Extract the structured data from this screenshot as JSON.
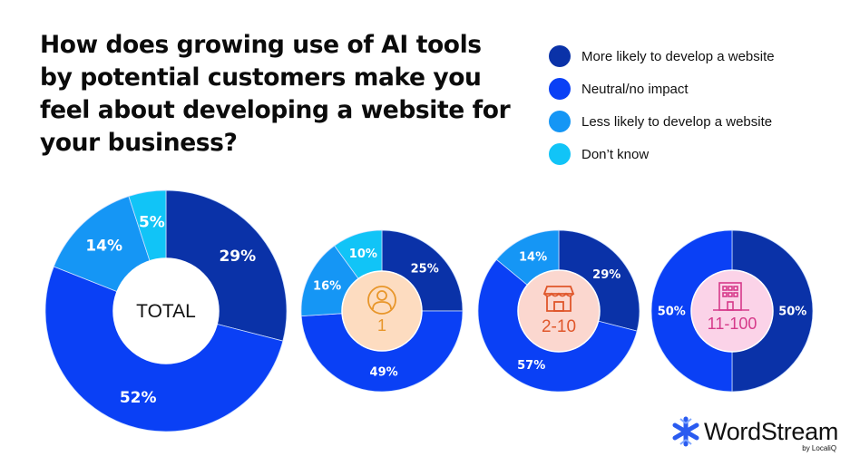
{
  "title": "How does growing use of AI tools by potential customers make you feel about developing a website for your business?",
  "legend": [
    {
      "label": "More likely to develop a website",
      "color": "#0a32a8"
    },
    {
      "label": "Neutral/no impact",
      "color": "#0a40f5"
    },
    {
      "label": "Less likely to develop a website",
      "color": "#1596f5"
    },
    {
      "label": "Don’t know",
      "color": "#11c4f7"
    }
  ],
  "logo": {
    "name": "WordStream",
    "sub": "by LocaliQ"
  },
  "chart_data": [
    {
      "type": "pie",
      "variant": "donut",
      "center_label": "TOTAL",
      "categories": [
        "More likely to develop a website",
        "Neutral/no impact",
        "Less likely to develop a website",
        "Don’t know"
      ],
      "values": [
        29,
        52,
        14,
        5
      ],
      "labels": [
        "29%",
        "52%",
        "14%",
        "5%"
      ]
    },
    {
      "type": "pie",
      "variant": "donut",
      "center_label": "1",
      "center_icon": "person-icon",
      "categories": [
        "More likely to develop a website",
        "Neutral/no impact",
        "Less likely to develop a website",
        "Don’t know"
      ],
      "values": [
        25,
        49,
        16,
        10
      ],
      "labels": [
        "25%",
        "49%",
        "16%",
        "10%"
      ]
    },
    {
      "type": "pie",
      "variant": "donut",
      "center_label": "2-10",
      "center_icon": "storefront-icon",
      "categories": [
        "More likely to develop a website",
        "Neutral/no impact",
        "Less likely to develop a website"
      ],
      "values": [
        29,
        57,
        14
      ],
      "labels": [
        "29%",
        "57%",
        "14%"
      ]
    },
    {
      "type": "pie",
      "variant": "donut",
      "center_label": "11-100",
      "center_icon": "office-building-icon",
      "categories": [
        "More likely to develop a website",
        "Neutral/no impact"
      ],
      "values": [
        50,
        50
      ],
      "labels": [
        "50%",
        "50%"
      ]
    }
  ]
}
